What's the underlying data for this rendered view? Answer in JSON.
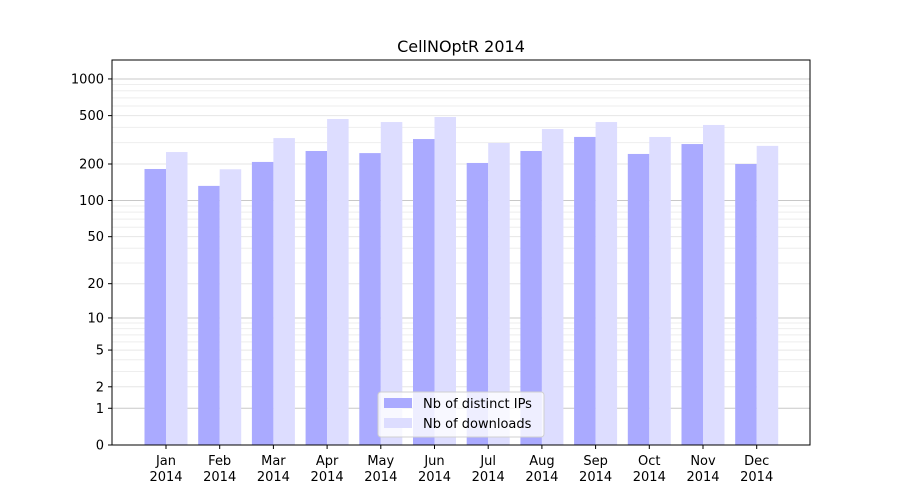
{
  "chart_data": {
    "type": "bar",
    "title": "CellNOptR 2014",
    "xlabel": "",
    "ylabel": "",
    "yscale": "log(1+y)",
    "ylim": [
      0,
      1430
    ],
    "yticks": [
      0,
      1,
      2,
      5,
      10,
      20,
      50,
      100,
      200,
      500,
      1000
    ],
    "grid": true,
    "legend": "bottom-center",
    "categories": [
      "Jan\n2014",
      "Feb\n2014",
      "Mar\n2014",
      "Apr\n2014",
      "May\n2014",
      "Jun\n2014",
      "Jul\n2014",
      "Aug\n2014",
      "Sep\n2014",
      "Oct\n2014",
      "Nov\n2014",
      "Dec\n2014"
    ],
    "series": [
      {
        "name": "Nb of distinct IPs",
        "color": "#aaaaff",
        "values": [
          182,
          132,
          208,
          256,
          246,
          321,
          204,
          256,
          334,
          242,
          292,
          200
        ]
      },
      {
        "name": "Nb of downloads",
        "color": "#ddddff",
        "values": [
          251,
          181,
          327,
          469,
          443,
          487,
          298,
          388,
          443,
          334,
          419,
          282
        ]
      }
    ]
  }
}
